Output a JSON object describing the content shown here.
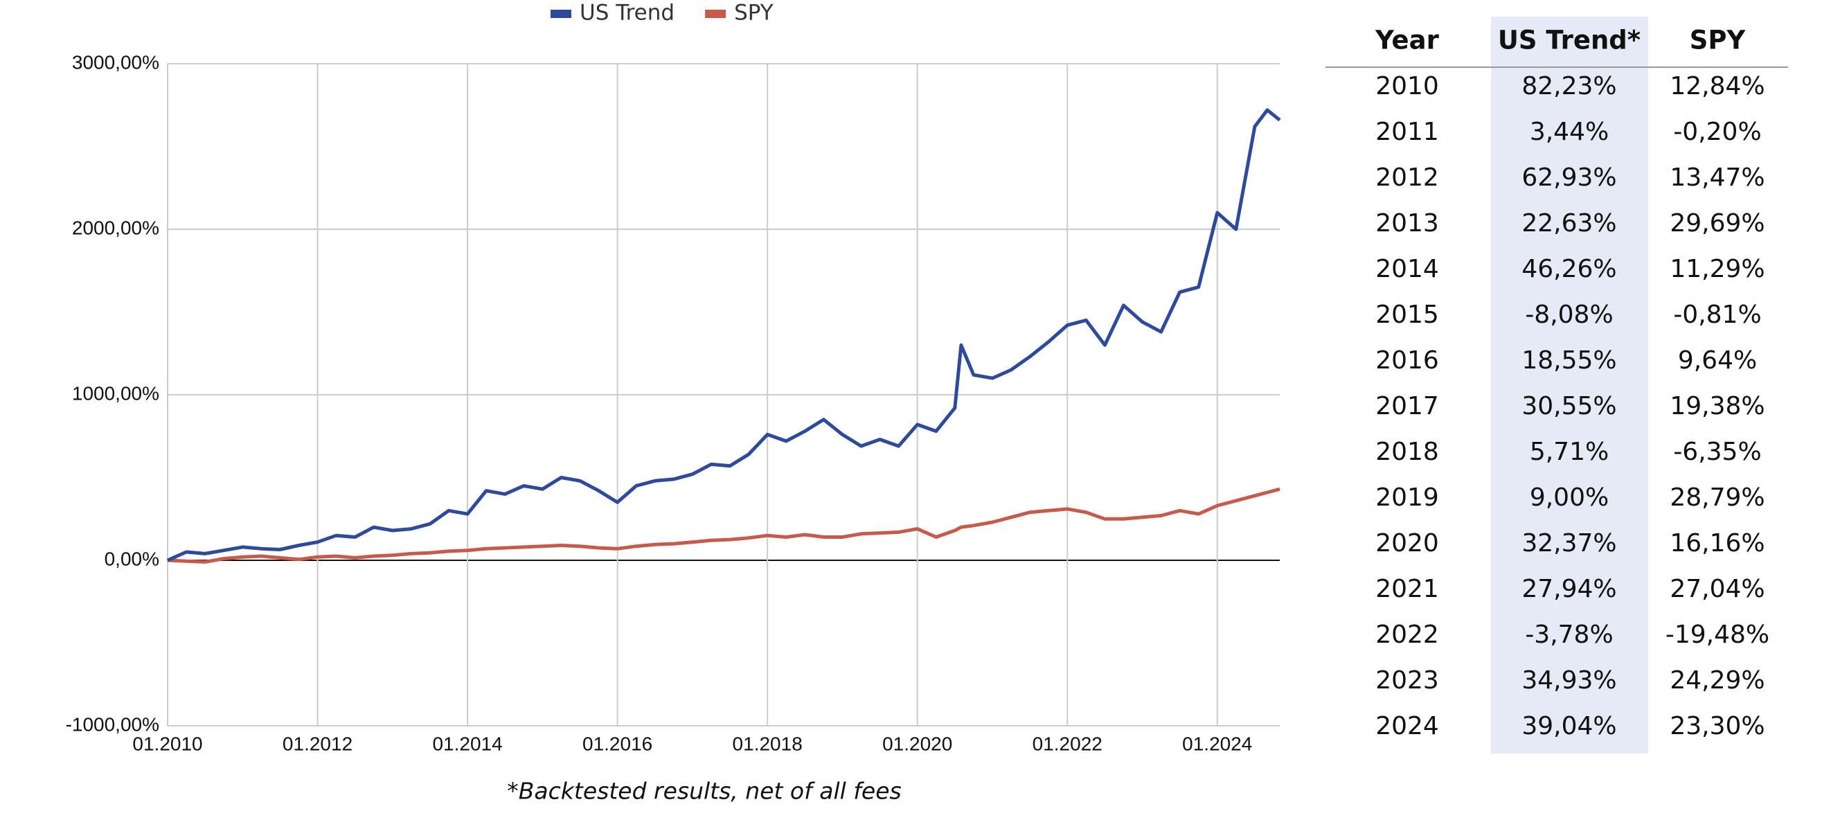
{
  "chart_data": {
    "type": "line",
    "footnote": "*Backtested results, net of all fees",
    "x": [
      "01.2010",
      "04.2010",
      "07.2010",
      "10.2010",
      "01.2011",
      "04.2011",
      "07.2011",
      "10.2011",
      "01.2012",
      "04.2012",
      "07.2012",
      "10.2012",
      "01.2013",
      "04.2013",
      "07.2013",
      "10.2013",
      "01.2014",
      "04.2014",
      "07.2014",
      "10.2014",
      "01.2015",
      "04.2015",
      "07.2015",
      "10.2015",
      "01.2016",
      "04.2016",
      "07.2016",
      "10.2016",
      "01.2017",
      "04.2017",
      "07.2017",
      "10.2017",
      "01.2018",
      "04.2018",
      "07.2018",
      "10.2018",
      "01.2019",
      "04.2019",
      "07.2019",
      "10.2019",
      "01.2020",
      "04.2020",
      "07.2020",
      "08.2020",
      "10.2020",
      "01.2021",
      "04.2021",
      "07.2021",
      "10.2021",
      "01.2022",
      "04.2022",
      "07.2022",
      "10.2022",
      "01.2023",
      "04.2023",
      "07.2023",
      "10.2023",
      "01.2024",
      "04.2024",
      "07.2024",
      "09.2024",
      "11.2024"
    ],
    "series": [
      {
        "name": "US Trend",
        "color": "#2e4a9a",
        "values": [
          0,
          50,
          40,
          60,
          80,
          70,
          65,
          90,
          110,
          150,
          140,
          200,
          180,
          190,
          220,
          300,
          280,
          420,
          400,
          450,
          430,
          500,
          480,
          420,
          350,
          450,
          480,
          490,
          520,
          580,
          570,
          640,
          760,
          720,
          780,
          850,
          760,
          690,
          730,
          690,
          820,
          780,
          920,
          1300,
          1120,
          1100,
          1150,
          1230,
          1320,
          1420,
          1450,
          1300,
          1540,
          1440,
          1380,
          1620,
          1650,
          2100,
          2000,
          2620,
          2720,
          2660
        ]
      },
      {
        "name": "SPY",
        "color": "#c85a4c",
        "values": [
          0,
          -5,
          -10,
          10,
          20,
          25,
          15,
          5,
          20,
          25,
          15,
          25,
          30,
          40,
          45,
          55,
          60,
          70,
          75,
          80,
          85,
          90,
          85,
          75,
          70,
          85,
          95,
          100,
          110,
          120,
          125,
          135,
          150,
          140,
          155,
          140,
          140,
          160,
          165,
          170,
          190,
          140,
          180,
          200,
          210,
          230,
          260,
          290,
          300,
          310,
          290,
          250,
          250,
          260,
          270,
          300,
          280,
          330,
          360,
          390,
          410,
          430
        ]
      }
    ],
    "xlim": [
      "01.2010",
      "11.2024"
    ],
    "xticks": [
      "01.2010",
      "01.2012",
      "01.2014",
      "01.2016",
      "01.2018",
      "01.2020",
      "01.2022",
      "01.2024"
    ],
    "ylim": [
      -1000,
      3000
    ],
    "yticks": [
      {
        "value": -1000,
        "label": "-1000,00%"
      },
      {
        "value": 0,
        "label": "0,00%"
      },
      {
        "value": 1000,
        "label": "1000,00%"
      },
      {
        "value": 2000,
        "label": "2000,00%"
      },
      {
        "value": 3000,
        "label": "3000,00%"
      }
    ],
    "grid": true,
    "legend": "top"
  },
  "table": {
    "columns": [
      "Year",
      "US Trend*",
      "SPY"
    ],
    "rows": [
      [
        "2010",
        "82,23%",
        "12,84%"
      ],
      [
        "2011",
        "3,44%",
        "-0,20%"
      ],
      [
        "2012",
        "62,93%",
        "13,47%"
      ],
      [
        "2013",
        "22,63%",
        "29,69%"
      ],
      [
        "2014",
        "46,26%",
        "11,29%"
      ],
      [
        "2015",
        "-8,08%",
        "-0,81%"
      ],
      [
        "2016",
        "18,55%",
        "9,64%"
      ],
      [
        "2017",
        "30,55%",
        "19,38%"
      ],
      [
        "2018",
        "5,71%",
        "-6,35%"
      ],
      [
        "2019",
        "9,00%",
        "28,79%"
      ],
      [
        "2020",
        "32,37%",
        "16,16%"
      ],
      [
        "2021",
        "27,94%",
        "27,04%"
      ],
      [
        "2022",
        "-3,78%",
        "-19,48%"
      ],
      [
        "2023",
        "34,93%",
        "24,29%"
      ],
      [
        "2024",
        "39,04%",
        "23,30%"
      ]
    ]
  }
}
